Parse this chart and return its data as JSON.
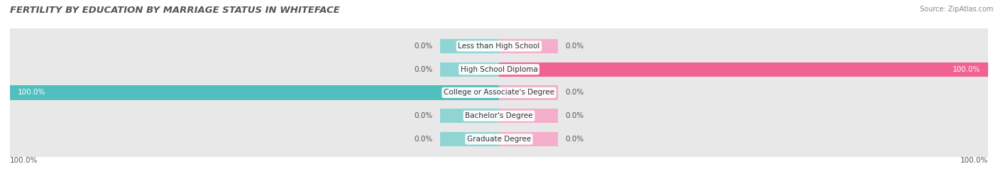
{
  "title": "FERTILITY BY EDUCATION BY MARRIAGE STATUS IN WHITEFACE",
  "source": "Source: ZipAtlas.com",
  "categories": [
    "Less than High School",
    "High School Diploma",
    "College or Associate's Degree",
    "Bachelor's Degree",
    "Graduate Degree"
  ],
  "married": [
    0.0,
    0.0,
    100.0,
    0.0,
    0.0
  ],
  "unmarried": [
    0.0,
    100.0,
    0.0,
    0.0,
    0.0
  ],
  "married_color": "#52BFBF",
  "married_stub_color": "#90D4D4",
  "unmarried_color": "#F06292",
  "unmarried_stub_color": "#F4AECB",
  "bar_bg_color": "#E8E8E8",
  "row_alt_color": "#F5F5F5",
  "title_fontsize": 9.5,
  "label_fontsize": 7.5,
  "source_fontsize": 7,
  "tick_fontsize": 7.5,
  "max_val": 100.0,
  "stub_size": 12.0,
  "fig_width": 14.06,
  "fig_height": 2.69,
  "dpi": 100
}
